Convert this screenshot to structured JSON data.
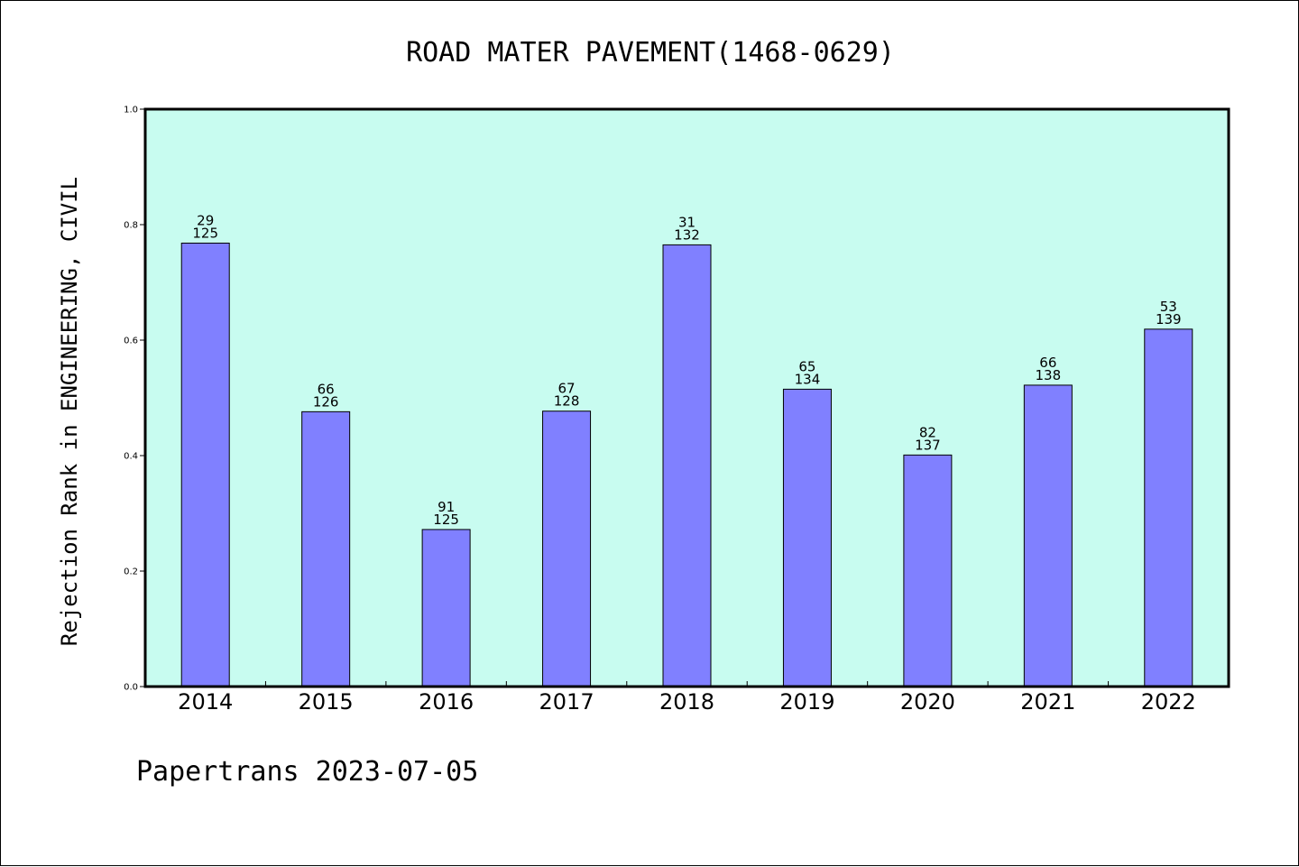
{
  "chart_data": {
    "type": "bar",
    "title": "ROAD MATER PAVEMENT(1468-0629)",
    "xlabel": "",
    "ylabel": "Rejection Rank in ENGINEERING, CIVIL",
    "categories": [
      "2014",
      "2015",
      "2016",
      "2017",
      "2018",
      "2019",
      "2020",
      "2021",
      "2022"
    ],
    "values": [
      0.768,
      0.476,
      0.272,
      0.477,
      0.765,
      0.515,
      0.401,
      0.522,
      0.619
    ],
    "rank": [
      "29",
      "66",
      "91",
      "67",
      "31",
      "65",
      "82",
      "66",
      "53"
    ],
    "total": [
      "125",
      "126",
      "125",
      "128",
      "132",
      "134",
      "137",
      "138",
      "139"
    ],
    "ylim": [
      0,
      1.0
    ],
    "yticks": [
      "0.0",
      "0.2",
      "0.4",
      "0.6",
      "0.8",
      "1.0"
    ],
    "grid": false,
    "legend": "none",
    "colors": {
      "plot_background": "#c8fcf0",
      "bar_fill": "#8080ff",
      "bar_edge": "#000000",
      "axis": "#000000"
    }
  },
  "footer": {
    "text": "Papertrans 2023-07-05"
  }
}
